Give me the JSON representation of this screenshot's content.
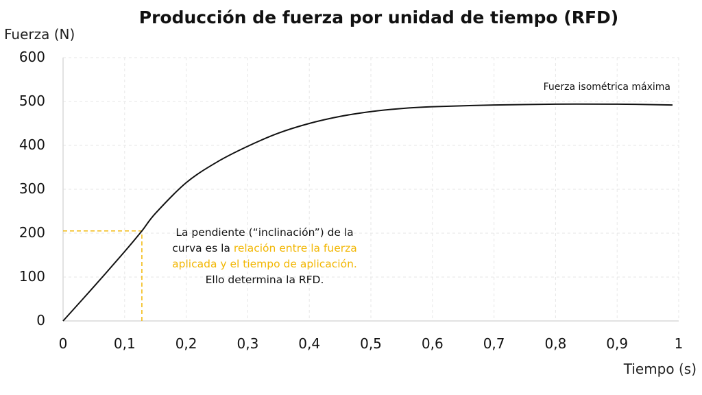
{
  "chart_data": {
    "type": "line",
    "title": "Producción de fuerza por unidad de tiempo (RFD)",
    "xlabel": "Tiempo (s)",
    "ylabel": "Fuerza (N)",
    "xlim": [
      0,
      1
    ],
    "ylim": [
      0,
      600
    ],
    "grid": true,
    "x_ticks": [
      "0",
      "0,1",
      "0,2",
      "0,3",
      "0,4",
      "0,5",
      "0,6",
      "0,7",
      "0,8",
      "0,9",
      "1"
    ],
    "y_ticks": [
      "0",
      "100",
      "200",
      "300",
      "400",
      "500",
      "600"
    ],
    "series": [
      {
        "name": "Fuerza",
        "color": "#111111",
        "x": [
          0,
          0.05,
          0.1,
          0.128,
          0.15,
          0.2,
          0.25,
          0.3,
          0.35,
          0.4,
          0.45,
          0.5,
          0.55,
          0.6,
          0.7,
          0.8,
          0.9,
          0.99
        ],
        "y": [
          0,
          78,
          158,
          205,
          245,
          315,
          362,
          398,
          428,
          450,
          466,
          477,
          484,
          488,
          492,
          494,
          494,
          492
        ]
      }
    ],
    "reference_lines": [
      {
        "type": "horizontal",
        "y": 205,
        "x_from": 0,
        "x_to": 0.128,
        "color": "#f2b705",
        "style": "dashed"
      },
      {
        "type": "vertical",
        "x": 0.128,
        "y_from": 0,
        "y_to": 205,
        "color": "#f2b705",
        "style": "dashed"
      }
    ],
    "annotations": [
      {
        "text": "Fuerza isométrica máxima",
        "x": 0.99,
        "y": 520
      },
      {
        "text": "La pendiente (“inclinación”) de la curva es la relación entre la fuerza aplicada y el tiempo de aplicación. Ello determina la RFD.",
        "x": 0.3,
        "y": 150
      }
    ]
  },
  "labels": {
    "title": "Producción de fuerza por unidad de tiempo (RFD)",
    "ylabel": "Fuerza (N)",
    "xlabel": "Tiempo (s)",
    "peak": "Fuerza isométrica máxima",
    "slope_line1": "La pendiente (“inclinación”) de la",
    "slope_line2_a": "curva es la ",
    "slope_line2_b": "relación entre la fuerza",
    "slope_line3": "aplicada y el tiempo de aplicación.",
    "slope_line4": "Ello determina la RFD."
  },
  "colors": {
    "curve": "#111111",
    "highlight": "#f2b705",
    "grid": "#e6e6e6",
    "axis": "#d9d9d9"
  }
}
